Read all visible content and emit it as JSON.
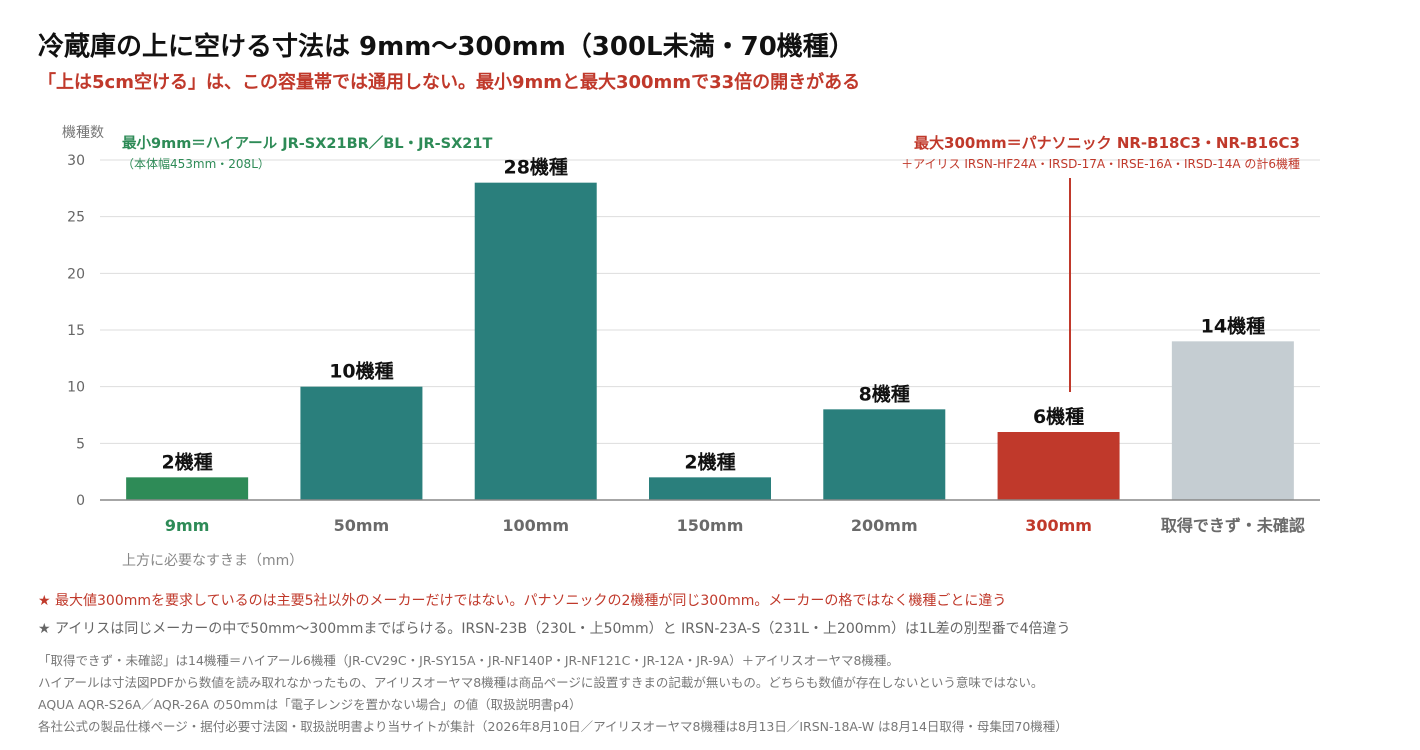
{
  "title": "冷蔵庫の上に空ける寸法は 9mm〜300mm（300L未満・70機種）",
  "subtitle": "「上は5cm空ける」は、この容量帯では通用しない。最小9mmと最大300mmで33倍の開きがある",
  "colors": {
    "teal": "#2a7f7c",
    "green": "#2e8b57",
    "red": "#c0392b",
    "gray": "#c5cdd2",
    "axis": "#888888",
    "grid": "#dddddd"
  },
  "chart_data": {
    "type": "bar",
    "categories": [
      "9mm",
      "50mm",
      "100mm",
      "150mm",
      "200mm",
      "300mm",
      "取得できず・未確認"
    ],
    "values": [
      2,
      10,
      28,
      2,
      8,
      6,
      14
    ],
    "value_labels": [
      "2機種",
      "10機種",
      "28機種",
      "2機種",
      "8機種",
      "6機種",
      "14機種"
    ],
    "bar_colors": [
      "#2e8b57",
      "#2a7f7c",
      "#2a7f7c",
      "#2a7f7c",
      "#2a7f7c",
      "#c0392b",
      "#c5cdd2"
    ],
    "category_colors": [
      "#2e8b57",
      "#6a6a6a",
      "#6a6a6a",
      "#6a6a6a",
      "#6a6a6a",
      "#c0392b",
      "#6a6a6a"
    ],
    "ylabel": "機種数",
    "xlabel": "上方に必要なすきま（mm）",
    "ylim": [
      0,
      30
    ],
    "yticks": [
      0,
      5,
      10,
      15,
      20,
      25,
      30
    ],
    "grid": true,
    "annotations": {
      "min": {
        "line1": "最小9mm＝ハイアール JR-SX21BR／BL・JR-SX21T",
        "line2": "（本体幅453mm・208L）"
      },
      "max": {
        "line1": "最大300mm＝パナソニック NR-B18C3・NR-B16C3",
        "line2": "＋アイリス IRSN-HF24A・IRSD-17A・IRSE-16A・IRSD-14A の計6機種"
      }
    }
  },
  "notes": {
    "red": "★ 最大値300mmを要求しているのは主要5社以外のメーカーだけではない。パナソニックの2機種が同じ300mm。メーカーの格ではなく機種ごとに違う",
    "gray": "★ アイリスは同じメーカーの中で50mm〜300mmまでばらける。IRSN-23B（230L・上50mm）と IRSN-23A-S（231L・上200mm）は1L差の別型番で4倍違う"
  },
  "footnotes": [
    "「取得できず・未確認」は14機種＝ハイアール6機種（JR-CV29C・JR-SY15A・JR-NF140P・JR-NF121C・JR-12A・JR-9A）＋アイリスオーヤマ8機種。",
    "ハイアールは寸法図PDFから数値を読み取れなかったもの、アイリスオーヤマ8機種は商品ページに設置すきまの記載が無いもの。どちらも数値が存在しないという意味ではない。",
    "AQUA AQR-S26A／AQR-26A の50mmは「電子レンジを置かない場合」の値（取扱説明書p4）",
    "各社公式の製品仕様ページ・据付必要寸法図・取扱説明書より当サイトが集計（2026年8月10日／アイリスオーヤマ8機種は8月13日／IRSN-18A-W は8月14日取得・母集団70機種）"
  ]
}
